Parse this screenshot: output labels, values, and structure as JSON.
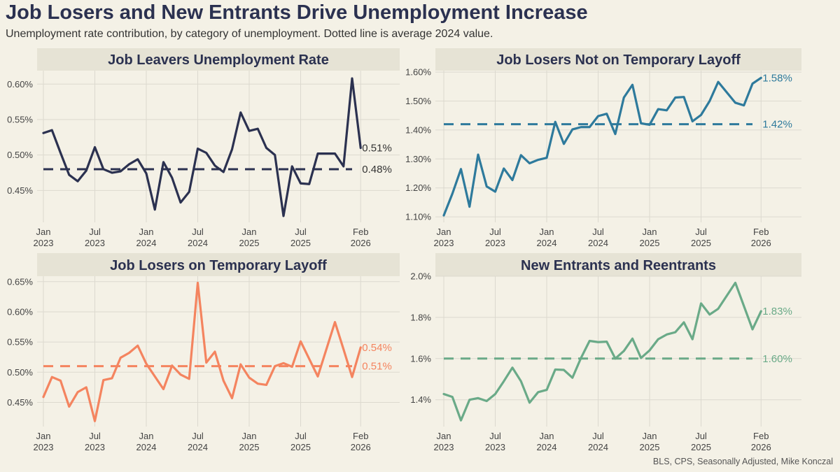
{
  "title": "Job Losers and New Entrants Drive Unemployment Increase",
  "subtitle": "Unemployment rate contribution, by category of unemployment. Dotted line is average 2024 value.",
  "source": "BLS, CPS, Seasonally Adjusted, Mike Konczal",
  "chart_data": [
    {
      "type": "line",
      "title": "Job Leavers Unemployment Rate",
      "color": "#2b3150",
      "ylim": [
        0.405,
        0.619
      ],
      "yticks": [
        0.45,
        0.5,
        0.55,
        0.6
      ],
      "ytick_labels": [
        "0.45%",
        "0.50%",
        "0.55%",
        "0.60%"
      ],
      "xtick_months": [
        0,
        6,
        12,
        18,
        24,
        30,
        37
      ],
      "xtick_labels": [
        [
          "Jan",
          "2023"
        ],
        [
          "Jul",
          "2023"
        ],
        [
          "Jan",
          "2024"
        ],
        [
          "Jul",
          "2024"
        ],
        [
          "Jan",
          "2025"
        ],
        [
          "Jul",
          "2025"
        ],
        [
          "Feb",
          "2026"
        ]
      ],
      "x_start": "Jan 2023",
      "values": [
        0.531,
        0.535,
        0.503,
        0.472,
        0.463,
        0.478,
        0.511,
        0.48,
        0.475,
        0.477,
        0.487,
        0.494,
        0.474,
        0.423,
        0.49,
        0.468,
        0.433,
        0.448,
        0.509,
        0.503,
        0.485,
        0.476,
        0.508,
        0.56,
        0.534,
        0.537,
        0.51,
        0.5,
        0.414,
        0.484,
        0.46,
        0.459,
        0.502,
        null,
        0.502,
        0.484,
        0.608,
        0.51
      ],
      "avg_2024": 0.48,
      "last_label": "0.51%",
      "avg_label": "0.48%"
    },
    {
      "type": "line",
      "title": "Job Losers Not on Temporary Layoff",
      "color": "#2e7a9c",
      "ylim": [
        1.081,
        1.605
      ],
      "yticks": [
        1.1,
        1.2,
        1.3,
        1.4,
        1.5,
        1.6
      ],
      "ytick_labels": [
        "1.10%",
        "1.20%",
        "1.30%",
        "1.40%",
        "1.50%",
        "1.60%"
      ],
      "xtick_months": [
        0,
        6,
        12,
        18,
        24,
        30,
        37
      ],
      "xtick_labels": [
        [
          "Jan",
          "2023"
        ],
        [
          "Jul",
          "2023"
        ],
        [
          "Jan",
          "2024"
        ],
        [
          "Jul",
          "2024"
        ],
        [
          "Jan",
          "2025"
        ],
        [
          "Jul",
          "2025"
        ],
        [
          "Feb",
          "2026"
        ]
      ],
      "x_start": "Jan 2023",
      "values": [
        1.105,
        1.18,
        1.265,
        1.135,
        1.315,
        1.205,
        1.187,
        1.267,
        1.227,
        1.313,
        1.285,
        1.297,
        1.304,
        1.428,
        1.352,
        1.402,
        1.41,
        1.41,
        1.448,
        1.456,
        1.386,
        1.512,
        1.556,
        1.423,
        1.418,
        1.472,
        1.468,
        1.512,
        1.514,
        1.43,
        1.452,
        1.5,
        1.566,
        null,
        1.494,
        1.485,
        1.56,
        1.58
      ],
      "avg_2024": 1.42,
      "last_label": "1.58%",
      "avg_label": "1.42%"
    },
    {
      "type": "line",
      "title": "Job Losers on Temporary Layoff",
      "color": "#f4845f",
      "ylim": [
        0.41,
        0.659
      ],
      "yticks": [
        0.45,
        0.5,
        0.55,
        0.6,
        0.65
      ],
      "ytick_labels": [
        "0.45%",
        "0.50%",
        "0.55%",
        "0.60%",
        "0.65%"
      ],
      "xtick_months": [
        0,
        6,
        12,
        18,
        24,
        30,
        37
      ],
      "xtick_labels": [
        [
          "Jan",
          "2023"
        ],
        [
          "Jul",
          "2023"
        ],
        [
          "Jan",
          "2024"
        ],
        [
          "Jul",
          "2024"
        ],
        [
          "Jan",
          "2025"
        ],
        [
          "Jul",
          "2025"
        ],
        [
          "Feb",
          "2026"
        ]
      ],
      "x_start": "Jan 2023",
      "values": [
        0.459,
        0.492,
        0.486,
        0.443,
        0.467,
        0.475,
        0.419,
        0.487,
        0.49,
        0.524,
        0.532,
        0.544,
        0.514,
        0.493,
        0.472,
        0.511,
        0.496,
        0.489,
        0.648,
        0.516,
        0.534,
        0.486,
        0.457,
        0.513,
        0.491,
        0.481,
        0.479,
        0.51,
        0.515,
        0.509,
        0.551,
        0.522,
        0.493,
        null,
        0.583,
        0.538,
        0.492,
        0.541
      ],
      "avg_2024": 0.51,
      "last_label": "0.54%",
      "avg_label": "0.51%"
    },
    {
      "type": "line",
      "title": "New Entrants and Reentrants",
      "color": "#6aaa88",
      "ylim": [
        1.27,
        2.0
      ],
      "yticks": [
        1.4,
        1.6,
        1.8,
        2.0
      ],
      "ytick_labels": [
        "1.4%",
        "1.6%",
        "1.8%",
        "2.0%"
      ],
      "xtick_months": [
        0,
        6,
        12,
        18,
        24,
        30,
        37
      ],
      "xtick_labels": [
        [
          "Jan",
          "2023"
        ],
        [
          "Jul",
          "2023"
        ],
        [
          "Jan",
          "2024"
        ],
        [
          "Jul",
          "2024"
        ],
        [
          "Jan",
          "2025"
        ],
        [
          "Jul",
          "2025"
        ],
        [
          "Feb",
          "2026"
        ]
      ],
      "x_start": "Jan 2023",
      "values": [
        1.428,
        1.414,
        1.3,
        1.4,
        1.408,
        1.394,
        1.428,
        1.49,
        1.556,
        1.49,
        1.386,
        1.437,
        1.448,
        1.547,
        1.545,
        1.507,
        1.603,
        1.686,
        1.68,
        1.682,
        1.6,
        1.637,
        1.697,
        1.603,
        1.64,
        1.694,
        1.717,
        1.728,
        1.776,
        1.694,
        1.868,
        1.814,
        1.842,
        null,
        1.968,
        1.855,
        1.742,
        1.83
      ],
      "avg_2024": 1.6,
      "last_label": "1.83%",
      "avg_label": "1.60%"
    }
  ]
}
